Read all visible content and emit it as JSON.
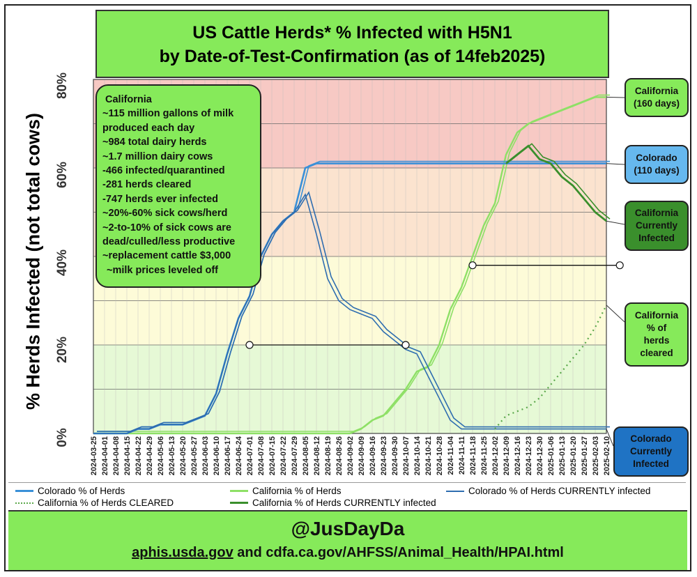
{
  "title_line1": "US Cattle Herds* % Infected with H5N1",
  "title_line2": "by Date-of-Test-Confirmation (as of 14feb2025)",
  "footer": {
    "handle": "@JusDayDa",
    "source_underlined": "aphis.usda.gov",
    "source_rest": " and cdfa.ca.gov/AHFSS/Animal_Health/HPAI.html"
  },
  "info_box": {
    "lines": [
      "California",
      "~115 million gallons of milk",
      "produced each day",
      "~984 total dairy herds",
      "~1.7 million dairy cows",
      "-466 infected/quarantined",
      "-281 herds cleared",
      "-747 herds ever infected",
      "~20%-60% sick cows/herd",
      "~2-to-10% of sick cows are",
      "dead/culled/less productive",
      "~replacement cattle $3,000",
      "~milk prices leveled off"
    ]
  },
  "callouts": {
    "ca_total": "California\n(160 days)",
    "co_total": "Colorado\n(110 days)",
    "ca_current": "California\nCurrently\nInfected",
    "ca_cleared": "California\n% of\nherds\ncleared",
    "co_current": "Colorado\nCurrently\nInfected"
  },
  "colors": {
    "title_bg": "#86ea5a",
    "colorado": "#3a90d8",
    "colorado_current": "#2e6db0",
    "california": "#8ee066",
    "california_current": "#3a8f2c",
    "california_cleared": "#5aa84a",
    "band_red": "#f7c9c4",
    "band_orange": "#fbe3cf",
    "band_yellow": "#fdfbd8",
    "band_green": "#e6f9d6",
    "callout_blue": "#66b8ee",
    "callout_darkblue": "#1f73c4"
  },
  "chart_data": {
    "type": "line",
    "title": "US Cattle Herds* % Infected with H5N1 by Date-of-Test-Confirmation (as of 14feb2025)",
    "xlabel": "",
    "ylabel": "% Herds Infected (not total cows)",
    "ylim": [
      0,
      80
    ],
    "yticks": [
      "0%",
      "20%",
      "40%",
      "60%",
      "80%"
    ],
    "grid": true,
    "legend_position": "bottom",
    "x": [
      "2024-03-25",
      "2024-04-01",
      "2024-04-08",
      "2024-04-15",
      "2024-04-22",
      "2024-04-29",
      "2024-05-06",
      "2024-05-13",
      "2024-05-20",
      "2024-05-27",
      "2024-06-03",
      "2024-06-10",
      "2024-06-17",
      "2024-06-24",
      "2024-07-01",
      "2024-07-08",
      "2024-07-15",
      "2024-07-22",
      "2024-07-29",
      "2024-08-05",
      "2024-08-12",
      "2024-08-19",
      "2024-08-26",
      "2024-09-02",
      "2024-09-09",
      "2024-09-16",
      "2024-09-23",
      "2024-09-30",
      "2024-10-07",
      "2024-10-14",
      "2024-10-21",
      "2024-10-28",
      "2024-11-04",
      "2024-11-11",
      "2024-11-18",
      "2024-11-25",
      "2024-12-02",
      "2024-12-09",
      "2024-12-16",
      "2024-12-23",
      "2024-12-30",
      "2025-01-06",
      "2025-01-13",
      "2025-01-20",
      "2025-01-27",
      "2025-02-03",
      "2025-02-10"
    ],
    "series": [
      {
        "name": "Colorado % of Herds",
        "values": [
          0,
          0,
          0,
          0,
          1,
          1,
          2,
          2,
          2,
          3,
          4,
          9,
          18,
          26,
          31,
          40,
          45,
          48,
          50,
          60,
          61,
          61,
          61,
          61,
          61,
          61,
          61,
          61,
          61,
          61,
          61,
          61,
          61,
          61,
          61,
          61,
          61,
          61,
          61,
          61,
          61,
          61,
          61,
          61,
          61,
          61,
          61
        ]
      },
      {
        "name": "California % of Herds",
        "values": [
          0,
          0,
          0,
          0,
          0,
          0,
          0,
          0,
          0,
          0,
          0,
          0,
          0,
          0,
          0,
          0,
          0,
          0,
          0,
          0,
          0,
          0,
          0,
          0,
          1,
          3,
          4,
          7,
          10,
          14,
          15,
          20,
          28,
          33,
          40,
          47,
          52,
          63,
          68,
          70,
          71,
          72,
          73,
          74,
          75,
          76,
          76
        ]
      },
      {
        "name": "Colorado % of Herds CURRENTLY infected",
        "values": [
          0,
          0,
          0,
          0,
          1,
          1,
          2,
          2,
          2,
          3,
          4,
          9,
          18,
          26,
          31,
          40,
          45,
          48,
          50,
          54,
          45,
          35,
          30,
          28,
          27,
          26,
          23,
          21,
          19,
          18,
          13,
          8,
          3,
          1,
          1,
          1,
          1,
          1,
          1,
          1,
          1,
          1,
          1,
          1,
          1,
          1,
          1
        ]
      },
      {
        "name": "California % of Herds CLEARED",
        "values": [
          null,
          null,
          null,
          null,
          null,
          null,
          null,
          null,
          null,
          null,
          null,
          null,
          null,
          null,
          null,
          null,
          null,
          null,
          null,
          null,
          null,
          null,
          null,
          null,
          null,
          null,
          null,
          null,
          null,
          null,
          null,
          null,
          null,
          null,
          null,
          null,
          1,
          4,
          5,
          6,
          8,
          11,
          14,
          17,
          20,
          24,
          29
        ]
      },
      {
        "name": "California % of Herds CURRENTLY infected",
        "values": [
          null,
          null,
          null,
          null,
          null,
          null,
          null,
          null,
          null,
          null,
          null,
          null,
          null,
          null,
          null,
          null,
          null,
          null,
          null,
          null,
          null,
          null,
          null,
          null,
          null,
          null,
          null,
          null,
          null,
          null,
          null,
          null,
          null,
          null,
          null,
          null,
          null,
          61,
          63,
          65,
          62,
          61,
          58,
          56,
          53,
          50,
          48
        ]
      }
    ]
  }
}
